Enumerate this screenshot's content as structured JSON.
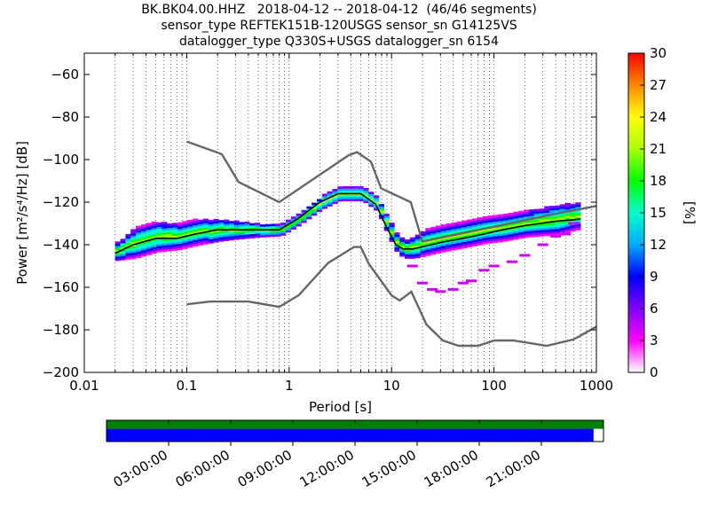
{
  "title_lines": [
    "BK.BK04.00.HHZ   2018-04-12 -- 2018-04-12  (46/46 segments)",
    "sensor_type REFTEK151B-120USGS sensor_sn G14125VS",
    "datalogger_type Q330S+USGS datalogger_sn 6154"
  ],
  "colorbar": {
    "label": "[%]",
    "min": 0,
    "max": 30,
    "ticks": [
      "0",
      "3",
      "6",
      "9",
      "12",
      "15",
      "18",
      "21",
      "24",
      "27",
      "30"
    ],
    "colors": [
      "#ffffff",
      "#ff00ff",
      "#8000ff",
      "#0000ff",
      "#00aaff",
      "#00ffcc",
      "#00ff00",
      "#aaff00",
      "#ffff00",
      "#ff8800",
      "#ff0000"
    ]
  },
  "timeline": {
    "tick_labels": [
      "03:00:00",
      "06:00:00",
      "09:00:00",
      "12:00:00",
      "15:00:00",
      "18:00:00",
      "21:00:00"
    ],
    "data_coverage_color": "#008000",
    "gap_coverage_color": "#0000ff",
    "coverage_fraction": 0.98
  },
  "chart_data": {
    "type": "heatmap",
    "xlabel": "Period [s]",
    "ylabel": "Power [m²/s⁴/Hz] [dB]",
    "xscale": "log",
    "xlim": [
      0.01,
      1000
    ],
    "ylim": [
      -200,
      -50
    ],
    "xticks": [
      "0.01",
      "0.1",
      "1",
      "10",
      "100",
      "1000"
    ],
    "yticks": [
      "−200",
      "−180",
      "−160",
      "−140",
      "−120",
      "−100",
      "−80",
      "−60"
    ],
    "grid": "dotted",
    "series": [
      {
        "name": "NHNM",
        "color": "#666666",
        "x": [
          0.1,
          0.22,
          0.32,
          0.8,
          3.8,
          4.6,
          6.3,
          7.9,
          15.4,
          20,
          354.8,
          10000
        ],
        "y": [
          -91.5,
          -97.4,
          -110.5,
          -120,
          -98,
          -96.5,
          -101,
          -113.5,
          -120,
          -138.5,
          -126,
          -112.5
        ]
      },
      {
        "name": "NLNM",
        "color": "#666666",
        "x": [
          0.1,
          0.17,
          0.4,
          0.8,
          1.24,
          2.4,
          4.3,
          5,
          6,
          10,
          12,
          15.6,
          21.9,
          31.6,
          45,
          70,
          101,
          154,
          328,
          600,
          1000
        ],
        "y": [
          -168,
          -166.7,
          -166.7,
          -169.2,
          -163.7,
          -148.6,
          -141.1,
          -141.1,
          -149,
          -163.8,
          -166.2,
          -162.1,
          -177.5,
          -185,
          -187.5,
          -187.5,
          -185,
          -185,
          -187.5,
          -184.5,
          -178.5
        ]
      },
      {
        "name": "mode",
        "color": "#000000",
        "x": [
          0.02,
          0.03,
          0.05,
          0.08,
          0.12,
          0.2,
          0.3,
          0.5,
          0.8,
          1.2,
          2,
          3,
          5,
          7,
          9,
          11,
          13,
          16,
          20,
          30,
          50,
          80,
          120,
          200,
          400,
          700
        ],
        "y": [
          -144,
          -140,
          -137,
          -137,
          -135,
          -133,
          -133,
          -133,
          -133,
          -128,
          -120,
          -116,
          -116,
          -121,
          -132,
          -140,
          -142,
          -142,
          -141,
          -139,
          -137,
          -135,
          -133,
          -131,
          -129,
          -128
        ]
      }
    ],
    "pdf_band": {
      "x": [
        0.02,
        0.03,
        0.05,
        0.08,
        0.12,
        0.2,
        0.3,
        0.5,
        0.8,
        1.2,
        2,
        3,
        5,
        7,
        9,
        11,
        13,
        16,
        20,
        30,
        50,
        80,
        120,
        200,
        400,
        700
      ],
      "y_center": [
        -143,
        -139,
        -136,
        -136,
        -134,
        -133,
        -133,
        -133,
        -133,
        -128,
        -120,
        -116,
        -116,
        -121,
        -132,
        -140,
        -142,
        -141,
        -139,
        -137,
        -135,
        -133,
        -132,
        -130,
        -128,
        -126
      ],
      "y_spread": [
        3,
        6,
        6,
        5,
        5,
        4,
        3,
        2,
        1.5,
        1.5,
        2,
        2,
        2,
        2,
        3,
        3,
        3,
        4,
        5,
        5,
        5,
        5,
        5,
        5,
        6,
        5
      ]
    },
    "outliers": {
      "x": [
        16,
        20,
        25,
        30,
        40,
        50,
        60,
        80,
        100,
        150,
        200,
        300,
        400,
        500,
        600
      ],
      "y": [
        -150,
        -158,
        -161,
        -162,
        -161,
        -158,
        -157,
        -152,
        -150,
        -148,
        -145,
        -140,
        -136,
        -135,
        -130
      ]
    }
  }
}
